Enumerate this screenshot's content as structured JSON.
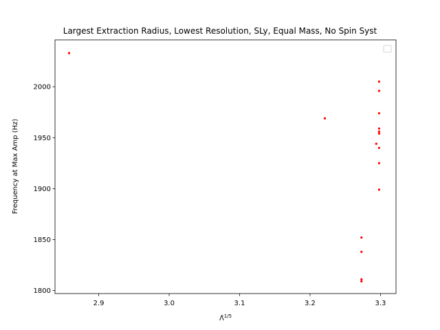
{
  "chart_data": {
    "type": "scatter",
    "title": "Largest Extraction Radius, Lowest Resolution, SLy, Equal Mass, No Spin Syst",
    "xlabel_base": "Λ̃",
    "xlabel_sup": "1/5",
    "ylabel": "Frequency at Max Amp (Hz)",
    "xlim": [
      2.838,
      3.322
    ],
    "ylim": [
      1797,
      2046
    ],
    "xticks": [
      2.9,
      3.0,
      3.1,
      3.2,
      3.3
    ],
    "xtick_labels": [
      "2.9",
      "3.0",
      "3.1",
      "3.2",
      "3.3"
    ],
    "yticks": [
      1800,
      1850,
      1900,
      1950,
      2000
    ],
    "ytick_labels": [
      "1800",
      "1850",
      "1900",
      "1950",
      "2000"
    ],
    "grid": false,
    "legend": "top-right",
    "marker_color": "#ff0000",
    "series": [
      {
        "points": [
          {
            "x": 2.858,
            "y": 2033
          },
          {
            "x": 3.221,
            "y": 1969
          },
          {
            "x": 3.273,
            "y": 1852
          },
          {
            "x": 3.273,
            "y": 1838
          },
          {
            "x": 3.273,
            "y": 1811
          },
          {
            "x": 3.273,
            "y": 1809
          },
          {
            "x": 3.294,
            "y": 1944
          },
          {
            "x": 3.298,
            "y": 2005
          },
          {
            "x": 3.298,
            "y": 1996
          },
          {
            "x": 3.298,
            "y": 1974
          },
          {
            "x": 3.298,
            "y": 1959
          },
          {
            "x": 3.298,
            "y": 1956
          },
          {
            "x": 3.298,
            "y": 1954
          },
          {
            "x": 3.298,
            "y": 1940
          },
          {
            "x": 3.298,
            "y": 1925
          },
          {
            "x": 3.298,
            "y": 1899
          }
        ]
      }
    ]
  }
}
